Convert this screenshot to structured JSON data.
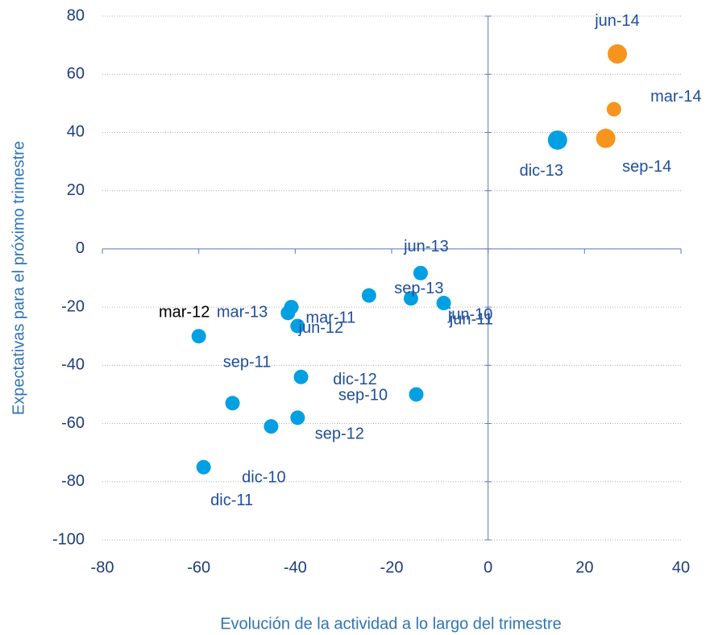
{
  "chart_data": {
    "type": "scatter",
    "x_label": "Evolución de la actividad a lo largo del trimestre",
    "y_label": "Expectativas para el próximo trimestre",
    "xlim": [
      -80,
      40
    ],
    "xticks": [
      -80,
      -60,
      -40,
      -20,
      0,
      20,
      40
    ],
    "ylim": [
      -100,
      80
    ],
    "yticks": [
      -100,
      -80,
      -60,
      -40,
      -20,
      0,
      20,
      40,
      60,
      80
    ],
    "grid": true,
    "series": [
      {
        "color": "#00a0e3",
        "x": [
          -60,
          -59,
          -53,
          -45,
          -39.5,
          -38.8,
          -40.8,
          -41.5,
          -39.5,
          -24.7,
          -16,
          -14,
          -9.2,
          -14.9,
          14.4
        ],
        "values": [
          -30,
          -75,
          -53,
          -61,
          -58,
          -44,
          -20,
          -22,
          -26.5,
          -16,
          -17,
          -8.3,
          -18.6,
          -50,
          37.4
        ],
        "labels": [
          "mar-12",
          "dic-11",
          "sep-11",
          "dic-10",
          "sep-12",
          "dic-12",
          "mar-13",
          "mar-11",
          "jun-12",
          "sep-13",
          "jun-11",
          "jun-13",
          "jun-10",
          "sep-10",
          "dic-13"
        ]
      },
      {
        "color": "#f7941d",
        "x": [
          26.8,
          26.1,
          24.4
        ],
        "values": [
          67,
          48,
          38
        ],
        "labels": [
          "jun-14",
          "mar-14",
          "sep-14"
        ]
      }
    ]
  }
}
